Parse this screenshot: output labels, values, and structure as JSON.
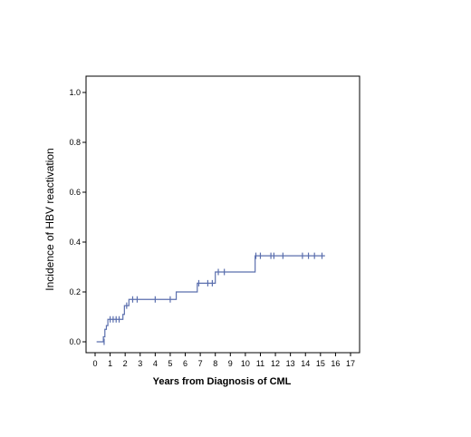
{
  "chart_data": {
    "type": "line",
    "title": "",
    "xlabel": "Years from Diagnosis of CML",
    "ylabel": "Incidence of HBV reactivation",
    "xlim": [
      0,
      17
    ],
    "ylim": [
      0,
      1.0
    ],
    "x_ticks": [
      0,
      1,
      2,
      3,
      4,
      5,
      6,
      7,
      8,
      9,
      10,
      11,
      12,
      13,
      14,
      15,
      16,
      17
    ],
    "y_ticks": [
      0.0,
      0.2,
      0.4,
      0.6,
      0.8,
      1.0
    ],
    "y_tick_labels": [
      "0.0",
      "0.2",
      "0.4",
      "0.6",
      "0.8",
      "1.0"
    ],
    "grid": false,
    "legend": "none",
    "series_color": "#5b6fae",
    "series": [
      {
        "step_curve": [
          [
            0.1,
            0.0
          ],
          [
            0.5,
            0.0
          ],
          [
            0.55,
            0.02
          ],
          [
            0.65,
            0.05
          ],
          [
            0.75,
            0.065
          ],
          [
            0.85,
            0.09
          ],
          [
            1.85,
            0.11
          ],
          [
            1.95,
            0.145
          ],
          [
            2.25,
            0.17
          ],
          [
            5.2,
            0.17
          ],
          [
            5.4,
            0.2
          ],
          [
            6.7,
            0.2
          ],
          [
            6.8,
            0.235
          ],
          [
            7.95,
            0.235
          ],
          [
            8.0,
            0.28
          ],
          [
            10.6,
            0.28
          ],
          [
            10.65,
            0.345
          ],
          [
            15.3,
            0.345
          ]
        ],
        "censor_marks": [
          [
            0.6,
            0.0
          ],
          [
            1.0,
            0.09
          ],
          [
            1.2,
            0.09
          ],
          [
            1.4,
            0.09
          ],
          [
            1.6,
            0.09
          ],
          [
            2.1,
            0.145
          ],
          [
            2.5,
            0.17
          ],
          [
            2.8,
            0.17
          ],
          [
            4.0,
            0.17
          ],
          [
            5.0,
            0.17
          ],
          [
            6.9,
            0.235
          ],
          [
            7.5,
            0.235
          ],
          [
            7.8,
            0.235
          ],
          [
            8.2,
            0.28
          ],
          [
            8.6,
            0.28
          ],
          [
            10.7,
            0.345
          ],
          [
            11.0,
            0.345
          ],
          [
            11.7,
            0.345
          ],
          [
            11.9,
            0.345
          ],
          [
            12.5,
            0.345
          ],
          [
            13.8,
            0.345
          ],
          [
            14.2,
            0.345
          ],
          [
            14.6,
            0.345
          ],
          [
            15.1,
            0.345
          ]
        ]
      }
    ]
  }
}
